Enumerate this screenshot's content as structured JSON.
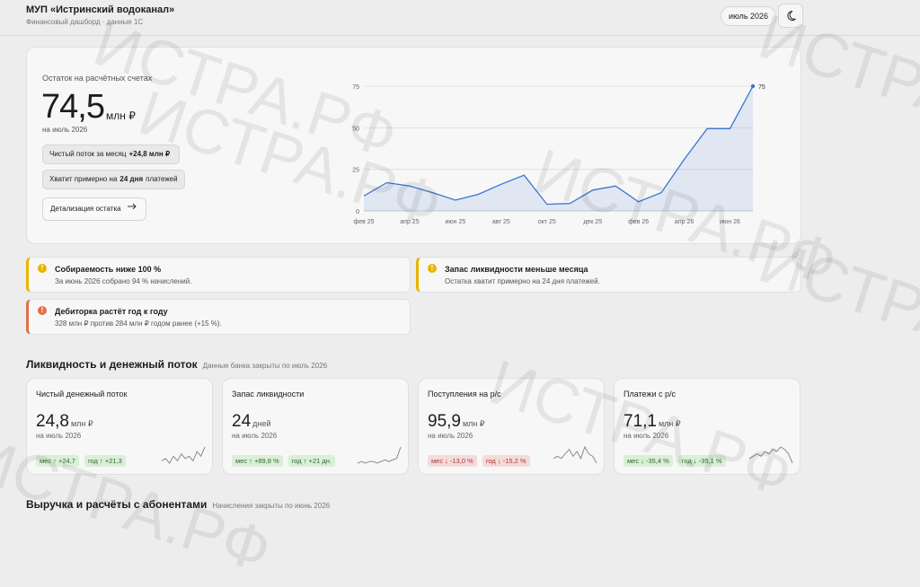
{
  "header": {
    "title": "МУП «Истринский водоканал»",
    "subtitle": "Финансовый дашборд · данные 1С",
    "period": "июль 2026"
  },
  "watermark": "ИСТРА.РФ",
  "hero": {
    "label": "Остаток на расчётных счетах",
    "value": "74,5",
    "unit": "млн ₽",
    "sub": "на июль 2026",
    "chip1": {
      "text": "Чистый поток за месяц",
      "strong": "+24,8 млн ₽"
    },
    "chip2": {
      "text": "Хватит примерно на",
      "strong": "24 дня",
      "tail": "платежей"
    },
    "button": "Детализация остатка"
  },
  "chart_data": {
    "type": "line",
    "categories": [
      "фев 25",
      null,
      "апр 25",
      null,
      "июн 25",
      null,
      "авг 25",
      null,
      "окт 25",
      null,
      "дек 25",
      null,
      "фев 26",
      null,
      "апр 26",
      null,
      "июн 26",
      null
    ],
    "values": [
      9,
      17,
      15,
      11,
      6.5,
      10,
      16,
      21.5,
      4,
      4.5,
      12.5,
      15,
      5.5,
      11,
      31,
      49.5,
      49.5,
      75
    ],
    "color": "#3b76d0",
    "ylim": [
      0,
      75
    ],
    "yticks": [
      0,
      25,
      50,
      75
    ],
    "grid": true
  },
  "alerts": [
    {
      "title": "Собираемость ниже 100 %",
      "text": "За июнь 2026 собрано 94 % начислений.",
      "color": "#e8b400"
    },
    {
      "title": "Запас ликвидности меньше месяца",
      "text": "Остатка хватит примерно на 24 дня платежей.",
      "color": "#e8b400"
    },
    {
      "title": "Дебиторка растёт год к году",
      "text": "328 млн ₽ против 284 млн ₽ годом ранее (+15 %).",
      "color": "#e0704a"
    }
  ],
  "section1": {
    "title": "Ликвидность и денежный поток",
    "note": "Данные банка закрыты по июль 2026"
  },
  "kpi": {
    "cards": [
      {
        "title": "Чистый денежный поток",
        "value": "24,8",
        "unit": "млн ₽",
        "sub": "на июль 2026",
        "chips": [
          {
            "text": "мес ↑ +24,7",
            "tone": "good"
          },
          {
            "text": "год ↑ +21,3",
            "tone": "good"
          }
        ],
        "spark": [
          3,
          4,
          2,
          5,
          3,
          6,
          4,
          5,
          3,
          7,
          5,
          9
        ]
      },
      {
        "title": "Запас ликвидности",
        "value": "24",
        "unit": "дней",
        "sub": "на июль 2026",
        "chips": [
          {
            "text": "мес ↑ +89,8 %",
            "tone": "good"
          },
          {
            "text": "год ↑ +21 дн.",
            "tone": "good"
          }
        ],
        "spark": [
          2,
          3,
          2,
          3,
          3,
          2,
          3,
          4,
          3,
          4,
          5,
          12
        ]
      },
      {
        "title": "Поступления на р/с",
        "value": "95,9",
        "unit": "млн ₽",
        "sub": "на июль 2026",
        "chips": [
          {
            "text": "мес ↓ -13,0 %",
            "tone": "bad"
          },
          {
            "text": "год ↓ -15,2 %",
            "tone": "bad"
          }
        ],
        "spark": [
          5,
          6,
          5,
          7,
          9,
          6,
          8,
          5,
          10,
          7,
          6,
          3
        ]
      },
      {
        "title": "Платежи с р/с",
        "value": "71,1",
        "unit": "млн ₽",
        "sub": "на июль 2026",
        "chips": [
          {
            "text": "мес ↓ -35,4 %",
            "tone": "good"
          },
          {
            "text": "год ↓ -35,1 %",
            "tone": "good"
          }
        ],
        "spark": [
          4,
          5,
          6,
          5,
          7,
          6,
          8,
          7,
          9,
          8,
          6,
          2
        ]
      }
    ]
  },
  "section2": {
    "title": "Выручка и расчёты с абонентами",
    "note": "Начисления закрыты по июнь 2026"
  }
}
